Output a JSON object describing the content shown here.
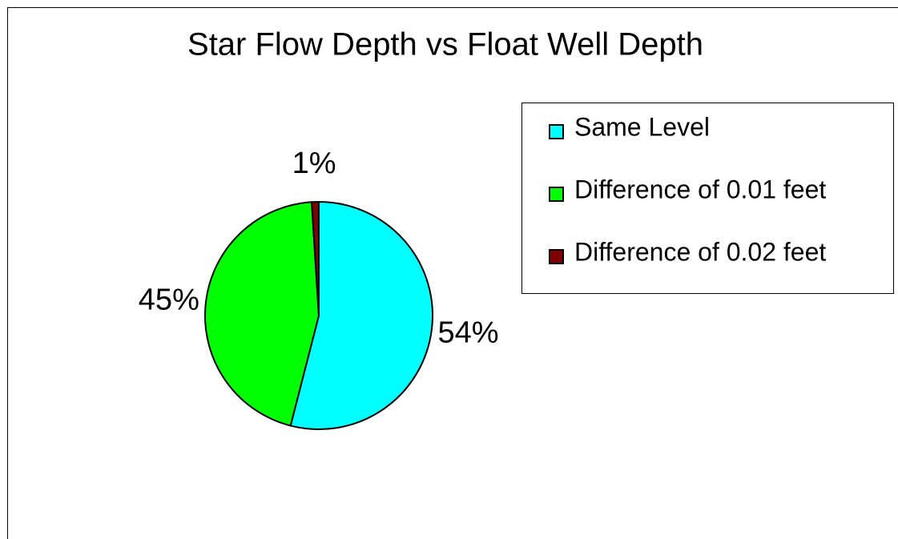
{
  "chart_data": {
    "type": "pie",
    "title": "Star Flow Depth vs Float Well Depth",
    "categories": [
      "Same Level",
      "Difference of 0.01 feet",
      "Difference of 0.02 feet"
    ],
    "values": [
      54,
      45,
      1
    ],
    "value_labels": [
      "54%",
      "45%",
      "1%"
    ],
    "colors": [
      "#00ffff",
      "#00ff00",
      "#800000"
    ],
    "legend": "right"
  }
}
